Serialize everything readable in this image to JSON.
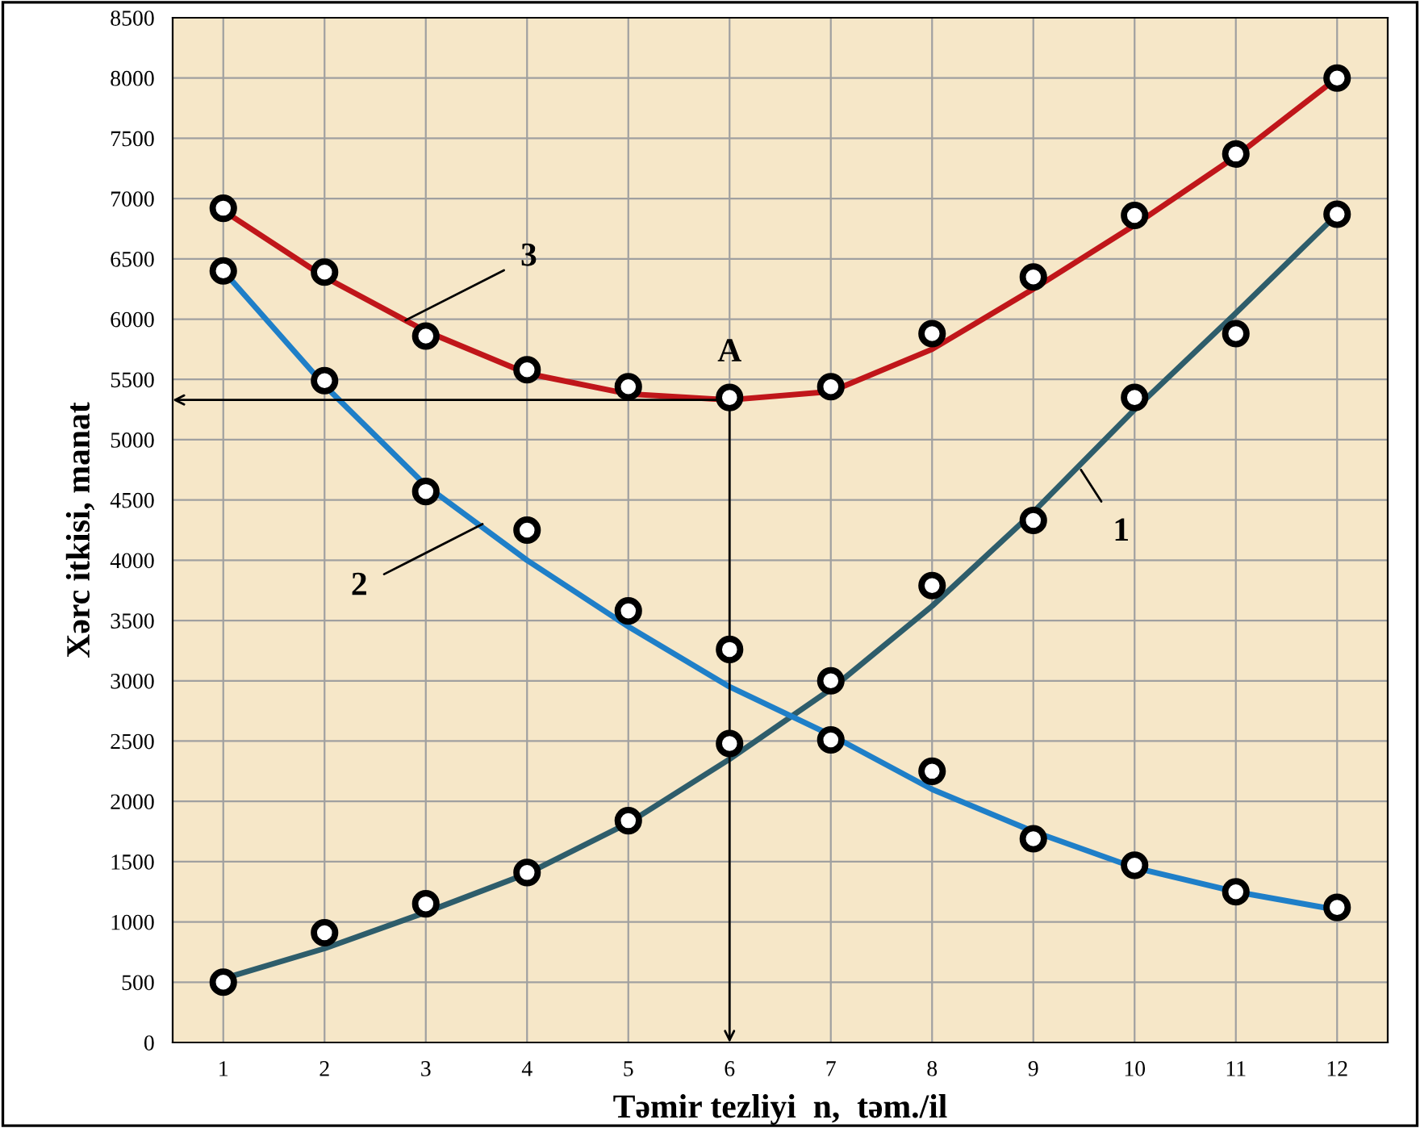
{
  "chart_data": {
    "type": "line",
    "xlabel": "Təmir tezliyi  n,  təm./il",
    "ylabel": "Xərc itkisi, manat",
    "xlim": [
      0.5,
      12.5
    ],
    "xticks": [
      1,
      2,
      3,
      4,
      5,
      6,
      7,
      8,
      9,
      10,
      11,
      12
    ],
    "ylim": [
      0,
      8500
    ],
    "yticks": [
      0,
      500,
      1000,
      1500,
      2000,
      2500,
      3000,
      3500,
      4000,
      4500,
      5000,
      5500,
      6000,
      6500,
      7000,
      7500,
      8000,
      8500
    ],
    "grid": true,
    "legend": false,
    "line_style": "solid",
    "series": [
      {
        "color": "#2e5d6b",
        "x": [
          1,
          2,
          3,
          4,
          5,
          6,
          7,
          8,
          9,
          10,
          11,
          12
        ],
        "values": [
          530,
          780,
          1080,
          1400,
          1820,
          2350,
          2930,
          3620,
          4400,
          5250,
          6050,
          6870
        ]
      },
      {
        "color": "#1f7fc8",
        "x": [
          1,
          2,
          3,
          4,
          5,
          6,
          7,
          8,
          9,
          10,
          11,
          12
        ],
        "values": [
          6400,
          5450,
          4620,
          4000,
          3450,
          2950,
          2550,
          2100,
          1750,
          1450,
          1250,
          1100
        ]
      },
      {
        "color": "#c0161a",
        "x": [
          1,
          2,
          3,
          4,
          5,
          6,
          7,
          8,
          9,
          10,
          11,
          12
        ],
        "values": [
          6900,
          6350,
          5900,
          5550,
          5380,
          5330,
          5400,
          5750,
          6250,
          6780,
          7350,
          8000
        ]
      },
      {
        "type": "scatter",
        "color": "#000000",
        "marker": "circle",
        "x": [
          1,
          2,
          3,
          4,
          5,
          6,
          7,
          8,
          9,
          10,
          11,
          12
        ],
        "values": [
          500,
          910,
          1150,
          1410,
          1840,
          2480,
          3000,
          3790,
          4330,
          5350,
          5880,
          6870
        ]
      },
      {
        "type": "scatter",
        "color": "#000000",
        "marker": "circle",
        "x": [
          1,
          2,
          3,
          4,
          5,
          6,
          7,
          8,
          9,
          10,
          11,
          12
        ],
        "values": [
          6400,
          5490,
          4570,
          4250,
          3580,
          3260,
          2510,
          2250,
          1690,
          1470,
          1250,
          1120
        ]
      },
      {
        "type": "scatter",
        "color": "#000000",
        "marker": "circle",
        "x": [
          1,
          2,
          3,
          4,
          5,
          6,
          7,
          8,
          9,
          10,
          11,
          12
        ],
        "values": [
          6920,
          6390,
          5860,
          5580,
          5440,
          5350,
          5440,
          5880,
          6350,
          6860,
          7370,
          8000
        ]
      }
    ],
    "annotations": [
      {
        "text": "1",
        "x": 9.47,
        "y": 4750
      },
      {
        "text": "2",
        "x": 3.56,
        "y": 4300
      },
      {
        "text": "3",
        "x": 2.8,
        "y": 5990
      },
      {
        "text": "A",
        "x": 6,
        "y": 5330
      }
    ]
  }
}
